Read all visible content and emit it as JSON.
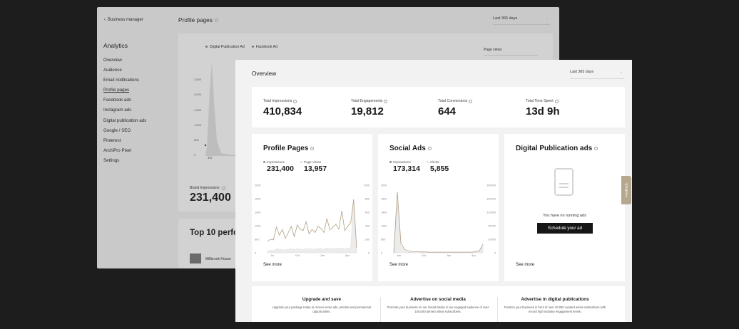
{
  "background_window": {
    "back_label": "Business manager",
    "section_title": "Analytics",
    "nav": [
      "Overview",
      "Audience",
      "Email notifications",
      "Profile pages",
      "Facebook ads",
      "Instagram ads",
      "Digital publication ads",
      "Google / SEO",
      "Pinterest",
      "ArchiPro Pixel",
      "Settings"
    ],
    "page_title": "Profile pages",
    "date_range": "Last 365 days",
    "legend": [
      "Digital Publication Ad",
      "Facebook Ad"
    ],
    "metric_select": "Page views",
    "y_ticks": [
      "2,500",
      "2,000",
      "1,500",
      "1,000",
      "500",
      "0"
    ],
    "x_tick": "Jul",
    "brand_label": "Brand Impressions",
    "brand_value": "231,400",
    "top10_title": "Top 10 perfor",
    "row_label": "Millbrook House"
  },
  "overview": {
    "title": "Overview",
    "date_range": "Last 365 days",
    "stats": [
      {
        "label": "Total Impressions",
        "value": "410,834"
      },
      {
        "label": "Total Engagements",
        "value": "19,812"
      },
      {
        "label": "Total Conversions",
        "value": "644"
      },
      {
        "label": "Total Time Spent",
        "value": "13d 9h"
      }
    ]
  },
  "profile_pages": {
    "title": "Profile Pages",
    "m1_label": "Impressions",
    "m1_value": "231,400",
    "m2_label": "Page Views",
    "m2_value": "13,957",
    "see_more": "See more"
  },
  "social_ads": {
    "title": "Social Ads",
    "m1_label": "Impressions",
    "m1_value": "173,314",
    "m2_label": "Clicks",
    "m2_value": "5,855",
    "see_more": "See more"
  },
  "digital_ads": {
    "title": "Digital Publication ads",
    "empty_text": "You have no running ads",
    "button": "Schedule your ad",
    "see_more": "See more"
  },
  "feedback": "Feedback",
  "promos": [
    {
      "title": "Upgrade and save",
      "text": "Upgrade your package today to receive more ads, articles and promotional opportunities."
    },
    {
      "title": "Advertise on social media",
      "text": "Promote your business on our Social Media to our engaged audience of over 100,000 primed online subscribers."
    },
    {
      "title": "Advertise in digital publications",
      "text": "Position your business in front of over 40,000 curated active subscribers with record high industry engagement levels."
    }
  ],
  "colors": {
    "accent": "#b19f86",
    "dark": "#161616",
    "light_series": "#e4e4e4"
  },
  "chart_data": [
    {
      "type": "line",
      "title": "Profile Pages",
      "x_tick_labels": [
        "Jul",
        "Oct",
        "Jan",
        "Apr"
      ],
      "y_left_ticks": [
        "2000",
        "1600",
        "1400",
        "1200",
        "800",
        "0"
      ],
      "y_right_ticks": [
        "1000",
        "800",
        "600",
        "400",
        "200",
        "0"
      ],
      "series": [
        {
          "name": "Impressions",
          "values": [
            340,
            400,
            380,
            760,
            520,
            690,
            430,
            600,
            780,
            480,
            820,
            700,
            660,
            920,
            560,
            690,
            600,
            780,
            720,
            600,
            1010,
            680,
            760,
            840,
            700,
            1240,
            660,
            780,
            900,
            1580,
            140
          ]
        },
        {
          "name": "Page Views",
          "values": [
            30,
            40,
            35,
            60,
            50,
            45,
            40,
            55,
            60,
            50,
            60,
            55,
            50,
            65,
            55,
            60,
            50,
            65,
            60,
            55,
            70,
            60,
            60,
            65,
            60,
            70,
            60,
            65,
            70,
            800,
            20
          ]
        }
      ]
    },
    {
      "type": "line",
      "title": "Social Ads",
      "x_tick_labels": [
        "Jan",
        "Oct",
        "Jan",
        "Apr"
      ],
      "y_left_ticks": [
        "2000",
        "1600",
        "1400",
        "1200",
        "800",
        "0"
      ],
      "y_right_ticks": [
        "180000",
        "150000",
        "120000",
        "90000",
        "30000",
        "0"
      ],
      "series": [
        {
          "name": "Impressions",
          "values": [
            0,
            1800,
            300,
            100,
            60,
            40,
            30,
            30,
            25,
            25,
            20,
            20,
            20,
            20,
            20,
            20,
            20,
            20,
            20,
            20,
            20,
            20,
            20,
            40,
            60,
            260
          ]
        },
        {
          "name": "Clicks",
          "values": [
            0,
            1500,
            200,
            50,
            20,
            10,
            10,
            10,
            10,
            10,
            10,
            10,
            10,
            10,
            10,
            10,
            10,
            10,
            10,
            10,
            10,
            10,
            10,
            20,
            40,
            200
          ]
        }
      ]
    }
  ]
}
